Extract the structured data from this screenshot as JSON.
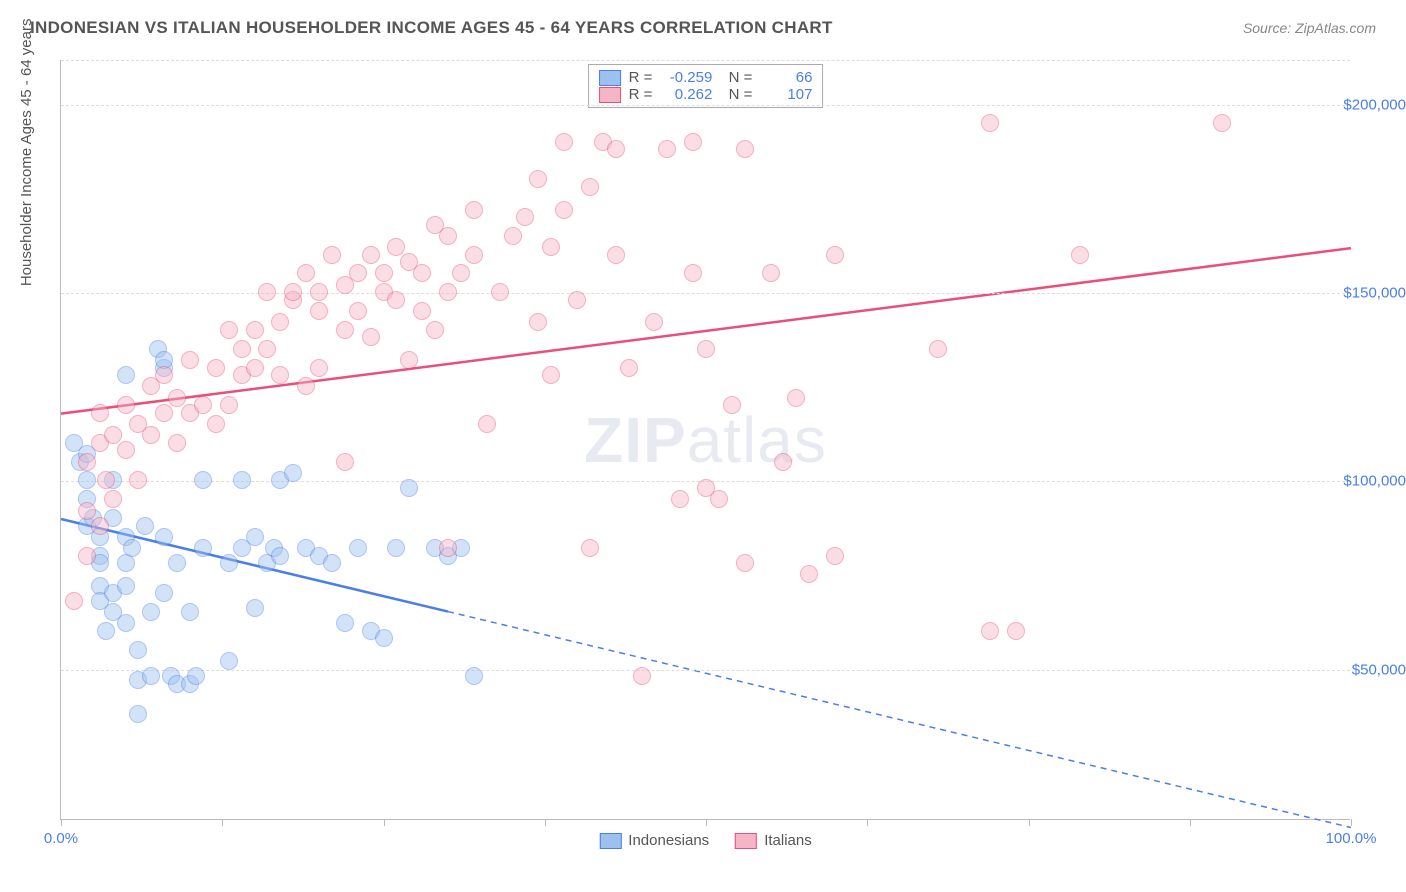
{
  "title": "INDONESIAN VS ITALIAN HOUSEHOLDER INCOME AGES 45 - 64 YEARS CORRELATION CHART",
  "source": "Source: ZipAtlas.com",
  "ylabel": "Householder Income Ages 45 - 64 years",
  "watermark_a": "ZIP",
  "watermark_b": "atlas",
  "chart": {
    "type": "scatter",
    "background_color": "#ffffff",
    "grid_color": "#dddddd",
    "axis_color": "#bbbbbb",
    "tick_label_color": "#4a7ee8",
    "label_fontsize": 15,
    "title_fontsize": 17,
    "xlim": [
      0,
      100
    ],
    "ylim": [
      10000,
      212000
    ],
    "xticks": [
      0,
      12.5,
      25,
      37.5,
      50,
      62.5,
      75,
      87.5,
      100
    ],
    "yticks": [
      50000,
      100000,
      150000,
      200000
    ],
    "ytick_labels": [
      "$50,000",
      "$100,000",
      "$150,000",
      "$200,000"
    ],
    "xtick_labels": {
      "0": "0.0%",
      "100": "100.0%"
    },
    "point_radius": 9,
    "point_opacity": 0.45,
    "line_width": 2.5,
    "series": [
      {
        "name": "Indonesians",
        "fill": "#9dc1ef",
        "stroke": "#4a7ee8",
        "R": "-0.259",
        "N": "66",
        "trend": {
          "x1": 0,
          "y1": 90000,
          "x2": 100,
          "y2": 8000,
          "solid_until_x": 30
        },
        "points": [
          [
            1,
            110000
          ],
          [
            1.5,
            105000
          ],
          [
            2,
            107000
          ],
          [
            2,
            100000
          ],
          [
            2,
            95000
          ],
          [
            2,
            88000
          ],
          [
            2.5,
            90000
          ],
          [
            3,
            85000
          ],
          [
            3,
            80000
          ],
          [
            3,
            78000
          ],
          [
            3,
            72000
          ],
          [
            3,
            68000
          ],
          [
            3.5,
            60000
          ],
          [
            4,
            65000
          ],
          [
            4,
            70000
          ],
          [
            4,
            90000
          ],
          [
            4,
            100000
          ],
          [
            5,
            85000
          ],
          [
            5,
            78000
          ],
          [
            5,
            72000
          ],
          [
            5,
            62000
          ],
          [
            5.5,
            82000
          ],
          [
            6,
            38000
          ],
          [
            6,
            55000
          ],
          [
            6,
            47000
          ],
          [
            6.5,
            88000
          ],
          [
            7,
            65000
          ],
          [
            7,
            48000
          ],
          [
            7.5,
            135000
          ],
          [
            8,
            130000
          ],
          [
            8,
            85000
          ],
          [
            8,
            70000
          ],
          [
            8.5,
            48000
          ],
          [
            9,
            78000
          ],
          [
            9,
            46000
          ],
          [
            10,
            46000
          ],
          [
            10,
            65000
          ],
          [
            10.5,
            48000
          ],
          [
            11,
            82000
          ],
          [
            11,
            100000
          ],
          [
            13,
            78000
          ],
          [
            13,
            52000
          ],
          [
            14,
            82000
          ],
          [
            14,
            100000
          ],
          [
            15,
            85000
          ],
          [
            15,
            66000
          ],
          [
            16,
            78000
          ],
          [
            16.5,
            82000
          ],
          [
            17,
            80000
          ],
          [
            17,
            100000
          ],
          [
            18,
            102000
          ],
          [
            19,
            82000
          ],
          [
            20,
            80000
          ],
          [
            21,
            78000
          ],
          [
            22,
            62000
          ],
          [
            23,
            82000
          ],
          [
            24,
            60000
          ],
          [
            25,
            58000
          ],
          [
            26,
            82000
          ],
          [
            27,
            98000
          ],
          [
            29,
            82000
          ],
          [
            30,
            80000
          ],
          [
            31,
            82000
          ],
          [
            32,
            48000
          ],
          [
            8,
            132000
          ],
          [
            5,
            128000
          ]
        ]
      },
      {
        "name": "Italians",
        "fill": "#f4b6c6",
        "stroke": "#e94f7a",
        "R": "0.262",
        "N": "107",
        "trend": {
          "x1": 0,
          "y1": 118000,
          "x2": 100,
          "y2": 162000,
          "solid_until_x": 100
        },
        "points": [
          [
            1,
            68000
          ],
          [
            2,
            80000
          ],
          [
            2,
            92000
          ],
          [
            2,
            105000
          ],
          [
            3,
            88000
          ],
          [
            3,
            110000
          ],
          [
            3,
            118000
          ],
          [
            3.5,
            100000
          ],
          [
            4,
            95000
          ],
          [
            4,
            112000
          ],
          [
            5,
            108000
          ],
          [
            5,
            120000
          ],
          [
            6,
            100000
          ],
          [
            6,
            115000
          ],
          [
            7,
            112000
          ],
          [
            7,
            125000
          ],
          [
            8,
            118000
          ],
          [
            8,
            128000
          ],
          [
            9,
            110000
          ],
          [
            9,
            122000
          ],
          [
            10,
            118000
          ],
          [
            10,
            132000
          ],
          [
            11,
            120000
          ],
          [
            12,
            115000
          ],
          [
            12,
            130000
          ],
          [
            13,
            120000
          ],
          [
            13,
            140000
          ],
          [
            14,
            128000
          ],
          [
            14,
            135000
          ],
          [
            15,
            140000
          ],
          [
            15,
            130000
          ],
          [
            16,
            135000
          ],
          [
            16,
            150000
          ],
          [
            17,
            142000
          ],
          [
            17,
            128000
          ],
          [
            18,
            148000
          ],
          [
            18,
            150000
          ],
          [
            19,
            125000
          ],
          [
            19,
            155000
          ],
          [
            20,
            130000
          ],
          [
            20,
            150000
          ],
          [
            20,
            145000
          ],
          [
            21,
            160000
          ],
          [
            22,
            140000
          ],
          [
            22,
            152000
          ],
          [
            23,
            155000
          ],
          [
            23,
            145000
          ],
          [
            24,
            160000
          ],
          [
            24,
            138000
          ],
          [
            25,
            155000
          ],
          [
            25,
            150000
          ],
          [
            26,
            148000
          ],
          [
            26,
            162000
          ],
          [
            27,
            132000
          ],
          [
            27,
            158000
          ],
          [
            28,
            155000
          ],
          [
            28,
            145000
          ],
          [
            29,
            168000
          ],
          [
            29,
            140000
          ],
          [
            30,
            165000
          ],
          [
            30,
            150000
          ],
          [
            31,
            155000
          ],
          [
            32,
            160000
          ],
          [
            32,
            172000
          ],
          [
            33,
            115000
          ],
          [
            34,
            150000
          ],
          [
            35,
            165000
          ],
          [
            36,
            170000
          ],
          [
            37,
            142000
          ],
          [
            37,
            180000
          ],
          [
            38,
            162000
          ],
          [
            38,
            128000
          ],
          [
            39,
            172000
          ],
          [
            39,
            190000
          ],
          [
            40,
            148000
          ],
          [
            41,
            82000
          ],
          [
            41,
            178000
          ],
          [
            42,
            190000
          ],
          [
            43,
            160000
          ],
          [
            43,
            188000
          ],
          [
            44,
            130000
          ],
          [
            45,
            48000
          ],
          [
            46,
            142000
          ],
          [
            47,
            188000
          ],
          [
            48,
            95000
          ],
          [
            49,
            155000
          ],
          [
            49,
            190000
          ],
          [
            50,
            135000
          ],
          [
            50,
            98000
          ],
          [
            51,
            95000
          ],
          [
            52,
            120000
          ],
          [
            53,
            78000
          ],
          [
            53,
            188000
          ],
          [
            55,
            155000
          ],
          [
            56,
            105000
          ],
          [
            57,
            122000
          ],
          [
            58,
            75000
          ],
          [
            60,
            160000
          ],
          [
            60,
            80000
          ],
          [
            68,
            135000
          ],
          [
            72,
            195000
          ],
          [
            72,
            60000
          ],
          [
            74,
            60000
          ],
          [
            79,
            160000
          ],
          [
            90,
            195000
          ],
          [
            22,
            105000
          ],
          [
            30,
            82000
          ]
        ]
      }
    ]
  }
}
